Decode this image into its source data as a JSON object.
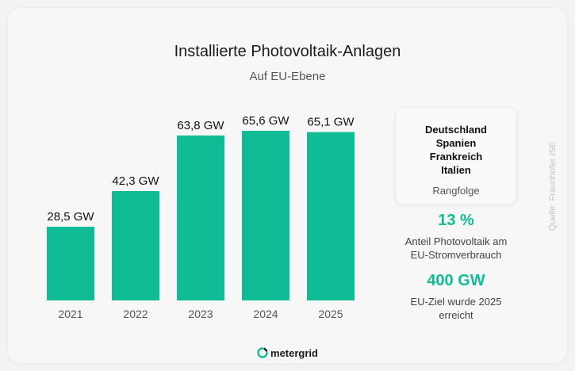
{
  "chart_data": {
    "type": "bar",
    "title": "Installierte Photovoltaik-Anlagen",
    "subtitle": "Auf EU-Ebene",
    "categories": [
      "2021",
      "2022",
      "2023",
      "2024",
      "2025"
    ],
    "values": [
      28.5,
      42.3,
      63.8,
      65.6,
      65.1
    ],
    "data_labels": [
      "28,5 GW",
      "42,3 GW",
      "63,8 GW",
      "65,6 GW",
      "65,1 GW"
    ],
    "unit": "GW",
    "ylim": [
      0,
      65.6
    ],
    "grid": false,
    "bar_color": "#10bc95"
  },
  "ranking": {
    "countries": [
      "Deutschland",
      "Spanien",
      "Frankreich",
      "Italien"
    ],
    "caption": "Rangfolge"
  },
  "stats": [
    {
      "value": "13 %",
      "description_lines": [
        "Anteil Photovoltaik am",
        "EU-Stromverbrauch"
      ]
    },
    {
      "value": "400 GW",
      "description_lines": [
        "EU-Ziel wurde 2025",
        "erreicht"
      ]
    }
  ],
  "source": "Quelle: Fraunhofer ISE",
  "brand": {
    "name": "metergrid",
    "icon": "metergrid-logo-icon"
  },
  "colors": {
    "accent": "#10bc95",
    "background": "#f7f7f7"
  }
}
